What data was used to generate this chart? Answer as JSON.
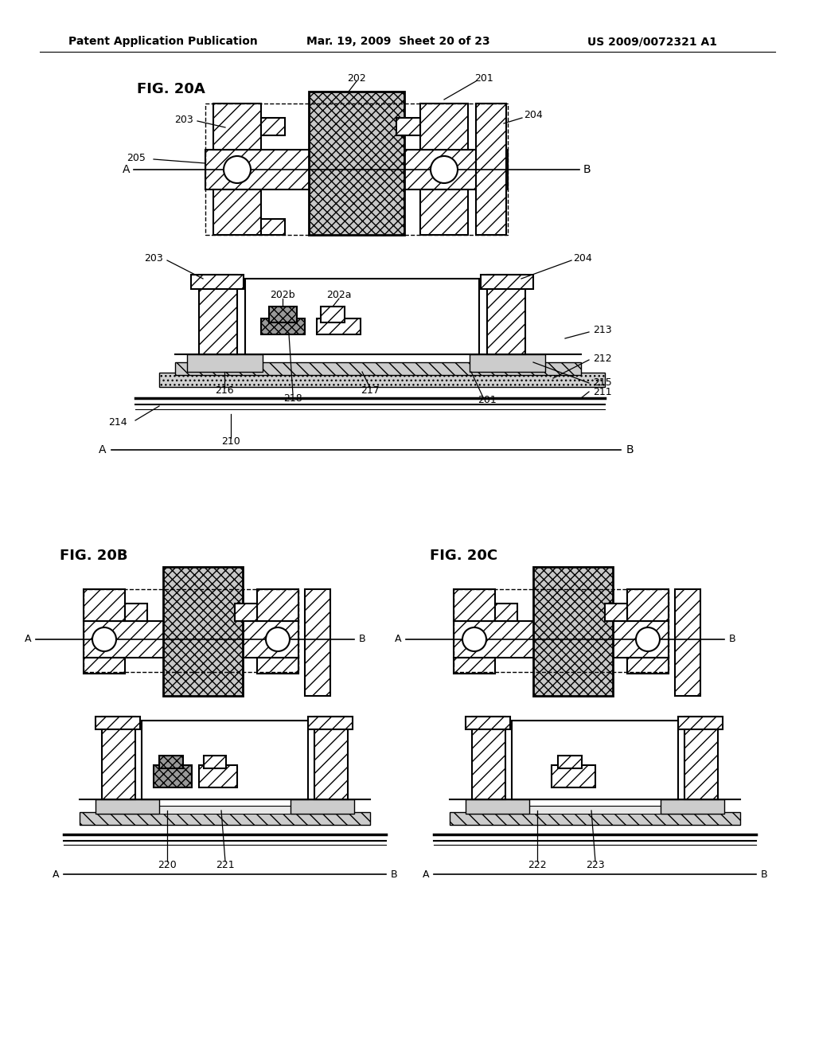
{
  "bg_color": "#ffffff",
  "header_left": "Patent Application Publication",
  "header_mid": "Mar. 19, 2009  Sheet 20 of 23",
  "header_right": "US 2009/0072321 A1",
  "font_size_header": 10,
  "font_size_fig": 13,
  "font_size_label": 9
}
